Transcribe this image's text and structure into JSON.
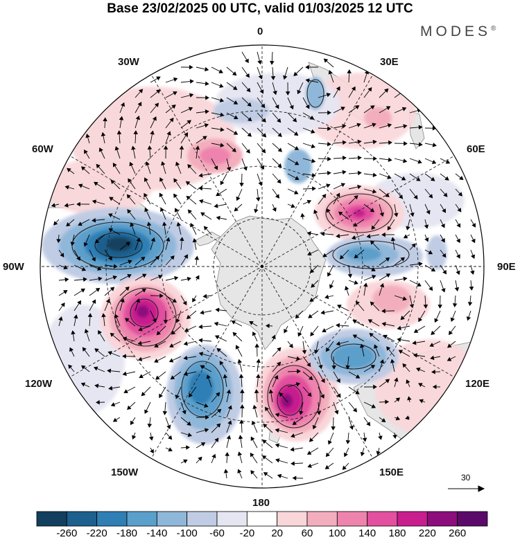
{
  "title": "Base 23/02/2025 00 UTC, valid 01/03/2025 12 UTC",
  "brand": "MODES",
  "brand_mark": "®",
  "longitude_labels": [
    {
      "id": "lon-0",
      "text": "0"
    },
    {
      "id": "lon-30e",
      "text": "30E"
    },
    {
      "id": "lon-60e",
      "text": "60E"
    },
    {
      "id": "lon-90e",
      "text": "90E"
    },
    {
      "id": "lon-120e",
      "text": "120E"
    },
    {
      "id": "lon-150e",
      "text": "150E"
    },
    {
      "id": "lon-180",
      "text": "180"
    },
    {
      "id": "lon-150w",
      "text": "150W"
    },
    {
      "id": "lon-120w",
      "text": "120W"
    },
    {
      "id": "lon-90w",
      "text": "90W"
    },
    {
      "id": "lon-60w",
      "text": "60W"
    },
    {
      "id": "lon-30w",
      "text": "30W"
    }
  ],
  "vector_reference": "30",
  "colorbar": {
    "labels": [
      "-260",
      "-220",
      "-180",
      "-140",
      "-100",
      "-60",
      "-20",
      "20",
      "60",
      "100",
      "140",
      "180",
      "220",
      "260"
    ],
    "colors": [
      "#123f5d",
      "#1d5f8d",
      "#2f7fb5",
      "#5b9fcb",
      "#8fb7d9",
      "#bfcce4",
      "#e6e6f2",
      "#ffffff",
      "#f9d6d9",
      "#f3aebd",
      "#ee84ad",
      "#e2509f",
      "#c81e8e",
      "#8c0d7c",
      "#5b0a69"
    ]
  },
  "colors": {
    "land": "#e6e6e6",
    "coast": "#777777",
    "grid": "#222222",
    "vector": "#000000"
  },
  "anomalies": [
    {
      "kind": "negative",
      "level": -260,
      "label": "low-amundsen"
    },
    {
      "kind": "positive",
      "level": 260,
      "label": "high-bellingshausen"
    },
    {
      "kind": "negative",
      "level": -180,
      "label": "low-ross"
    },
    {
      "kind": "positive",
      "level": 260,
      "label": "high-tasman"
    },
    {
      "kind": "negative",
      "level": -180,
      "label": "low-south-australia"
    },
    {
      "kind": "positive",
      "level": 180,
      "label": "high-indian"
    },
    {
      "kind": "negative",
      "level": -140,
      "label": "low-kerguelen"
    },
    {
      "kind": "positive",
      "level": 100,
      "label": "high-south-atlantic"
    }
  ]
}
